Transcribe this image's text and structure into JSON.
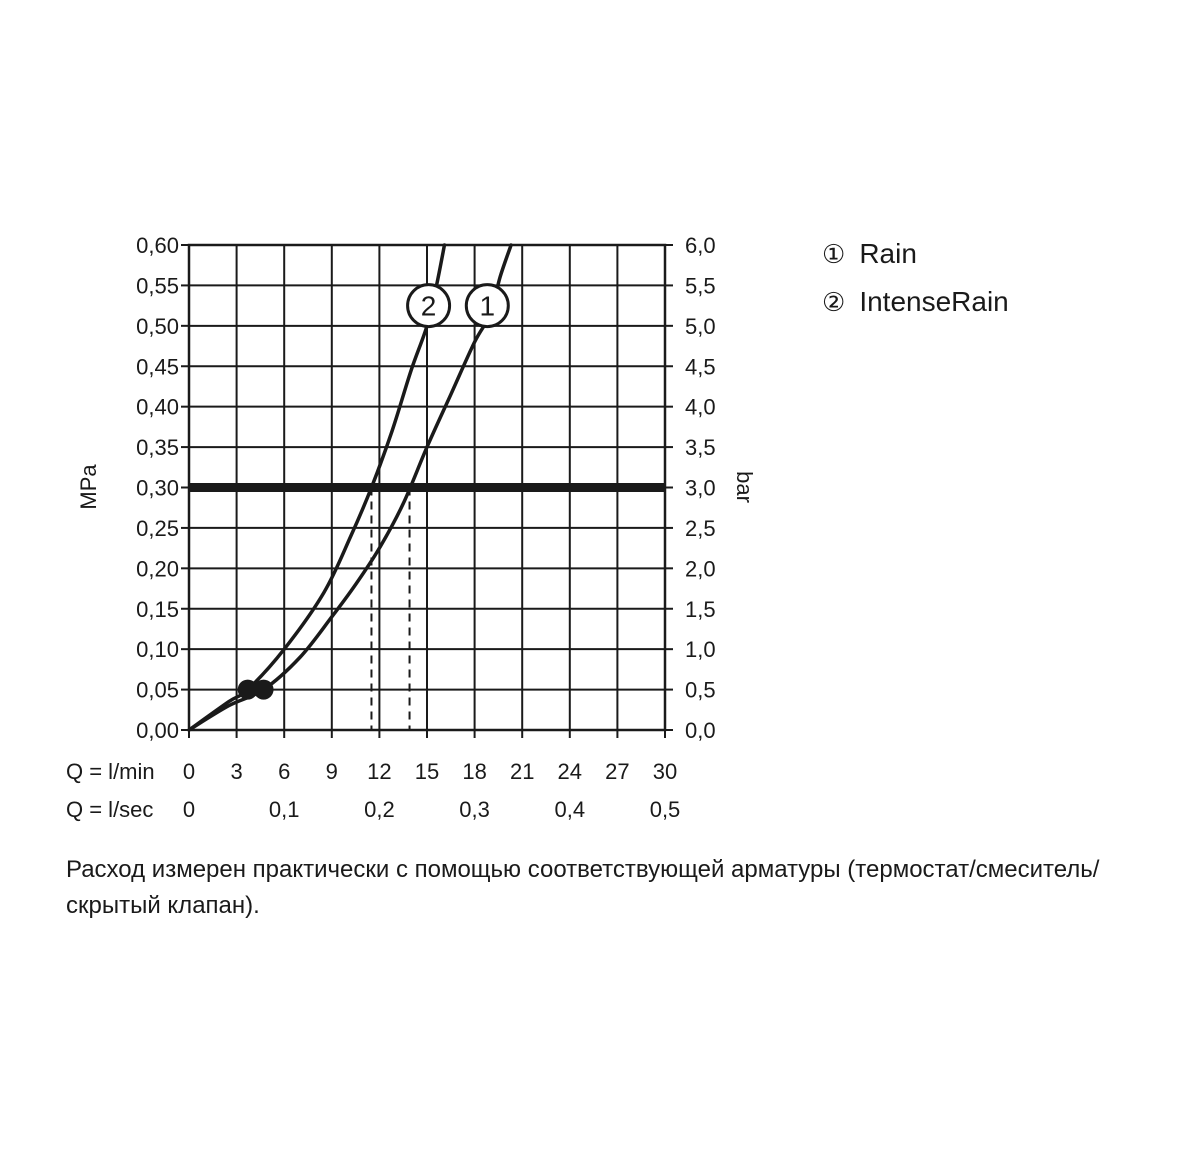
{
  "chart_data": {
    "type": "line",
    "title": "",
    "ylabel_left": "MPa",
    "ylabel_right": "bar",
    "xlabel_lmin": "Q = l/min",
    "xlabel_lsec": "Q = l/sec",
    "xlim": [
      0,
      30
    ],
    "ylim": [
      0,
      0.6
    ],
    "grid": true,
    "x_ticks_lmin": [
      "0",
      "3",
      "6",
      "9",
      "12",
      "15",
      "18",
      "21",
      "24",
      "27",
      "30"
    ],
    "x_ticks_lsec": [
      {
        "label": "0",
        "value": 0
      },
      {
        "label": "0,1",
        "value": 0.1
      },
      {
        "label": "0,2",
        "value": 0.2
      },
      {
        "label": "0,3",
        "value": 0.3
      },
      {
        "label": "0,4",
        "value": 0.4
      },
      {
        "label": "0,5",
        "value": 0.5
      }
    ],
    "y_ticks_mpa": [
      "0,00",
      "0,05",
      "0,10",
      "0,15",
      "0,20",
      "0,25",
      "0,30",
      "0,35",
      "0,40",
      "0,45",
      "0,50",
      "0,55",
      "0,60"
    ],
    "y_ticks_bar": [
      "0,0",
      "0,5",
      "1,0",
      "1,5",
      "2,0",
      "2,5",
      "3,0",
      "3,5",
      "4,0",
      "4,5",
      "5,0",
      "5,5",
      "6,0"
    ],
    "reference_line": {
      "y": 0.3
    },
    "series": [
      {
        "name": "Rain",
        "marker_label": "1",
        "x": [
          0,
          2.5,
          4.7,
          7,
          9,
          10.5,
          12,
          13.5,
          15,
          16.5,
          18,
          19,
          19.6,
          20.3
        ],
        "y": [
          0,
          0.03,
          0.05,
          0.09,
          0.14,
          0.18,
          0.225,
          0.28,
          0.35,
          0.415,
          0.48,
          0.515,
          0.56,
          0.6
        ]
      },
      {
        "name": "IntenseRain",
        "marker_label": "2",
        "x": [
          0,
          2.5,
          3.7,
          6,
          8.5,
          10.2,
          11.5,
          12.8,
          14,
          15,
          15.6,
          16.1
        ],
        "y": [
          0,
          0.035,
          0.05,
          0.1,
          0.17,
          0.24,
          0.3,
          0.37,
          0.445,
          0.5,
          0.55,
          0.6
        ]
      }
    ],
    "intersections": [
      {
        "series": "IntenseRain",
        "x": 11.5,
        "y": 0.3
      },
      {
        "series": "Rain",
        "x": 13.9,
        "y": 0.3
      }
    ],
    "start_points": [
      {
        "series": "IntenseRain",
        "x": 3.7,
        "y": 0.05
      },
      {
        "series": "Rain",
        "x": 4.7,
        "y": 0.05
      }
    ],
    "label_points": [
      {
        "text": "2",
        "x": 15.1,
        "y": 0.525
      },
      {
        "text": "1",
        "x": 18.8,
        "y": 0.525
      }
    ]
  },
  "legend": [
    {
      "num": "①",
      "label": "Rain"
    },
    {
      "num": "②",
      "label": "IntenseRain"
    }
  ],
  "caption": "Расход измерен практически с помощью соответствующей арматуры (термостат/смеситель/скрытый клапан).",
  "colors": {
    "ink": "#1a1a1a",
    "background": "#ffffff"
  }
}
